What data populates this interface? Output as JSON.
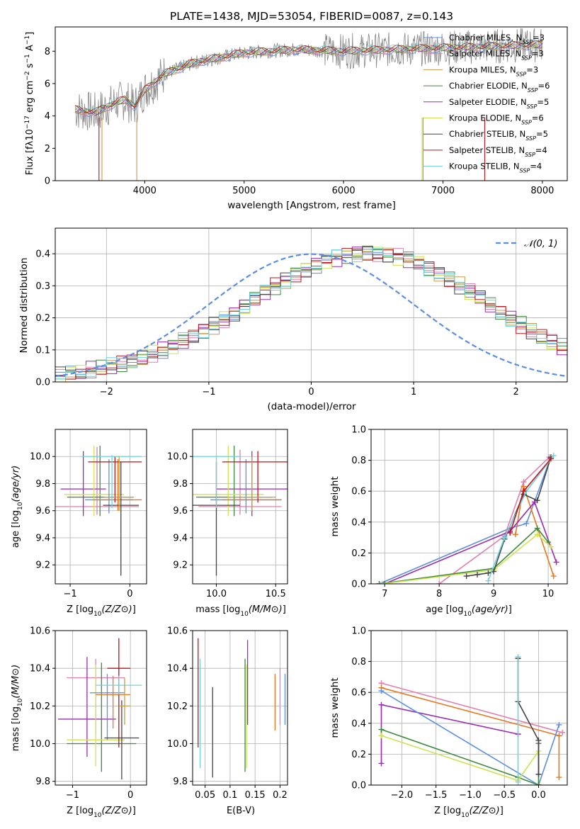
{
  "colors": {
    "blue": "#5b8ee6",
    "orange": "#e8781e",
    "tan": "#c89a4b",
    "green": "#3d8a3d",
    "purple": "#9b2ab4",
    "yellow": "#cfe34f",
    "dark": "#444444",
    "red": "#c0131a",
    "cyan": "#6fd3dd",
    "pink": "#e27eb0",
    "olive": "#8abf2a",
    "gray": "#888888"
  },
  "chart_data": [
    {
      "id": "spectrum",
      "type": "line",
      "title": "PLATE=1438, MJD=53054, FIBERID=0087, z=0.143",
      "xlabel": "wavelength [Angstrom, rest frame]",
      "ylabel_main": "Flux [fλ10",
      "ylabel_exp": "−17",
      "ylabel_rest": " erg cm",
      "ylabel_exp2": "−2",
      "ylabel_rest2": " s",
      "ylabel_exp3": "−1",
      "ylabel_rest3": " A",
      "ylabel_exp4": "−1",
      "ylabel_end": "]",
      "xlim": [
        3100,
        8250
      ],
      "ylim": [
        0,
        9.5
      ],
      "xticks": [
        4000,
        5000,
        6000,
        7000,
        8000
      ],
      "yticks": [
        0,
        2,
        4,
        6,
        8
      ],
      "grid": false,
      "legend_placement": "top-right",
      "data_trace": {
        "x": [
          3300,
          3400,
          3500,
          3600,
          3700,
          3800,
          3900,
          4000,
          4200,
          4500,
          5000,
          5500,
          6000,
          6500,
          7000,
          7500,
          8000
        ],
        "y": [
          4.4,
          4.3,
          4.2,
          4.5,
          4.8,
          5.0,
          4.6,
          5.6,
          6.6,
          7.3,
          7.9,
          8.1,
          8.0,
          8.1,
          8.2,
          8.3,
          8.4
        ]
      },
      "series": [
        {
          "name": "Chabrier MILES, N",
          "sub": "SSP",
          "suffix": "=3",
          "color": "blue"
        },
        {
          "name": "Salpeter MILES, N",
          "sub": "SSP",
          "suffix": "=3",
          "color": "pink"
        },
        {
          "name": "Kroupa MILES, N",
          "sub": "SSP",
          "suffix": "=3",
          "color": "tan"
        },
        {
          "name": "Chabrier ELODIE, N",
          "sub": "SSP",
          "suffix": "=6",
          "color": "green"
        },
        {
          "name": "Salpeter ELODIE, N",
          "sub": "SSP",
          "suffix": "=5",
          "color": "purple"
        },
        {
          "name": "Kroupa ELODIE, N",
          "sub": "SSP",
          "suffix": "=6",
          "color": "yellow"
        },
        {
          "name": "Chabrier STELIB, N",
          "sub": "SSP",
          "suffix": "=5",
          "color": "dark"
        },
        {
          "name": "Salpeter STELIB, N",
          "sub": "SSP",
          "suffix": "=4",
          "color": "red"
        },
        {
          "name": "Kroupa STELIB, N",
          "sub": "SSP",
          "suffix": "=4",
          "color": "cyan"
        }
      ],
      "model_lines": [
        3540,
        3570,
        3920,
        6790,
        6800,
        7420
      ]
    },
    {
      "id": "residuals",
      "type": "histogram",
      "xlabel": "(data-model)/error",
      "ylabel": "Normed distribution",
      "xlim": [
        -2.5,
        2.5
      ],
      "ylim": [
        0,
        0.48
      ],
      "xticks": [
        -2,
        -1,
        0,
        1,
        2
      ],
      "yticks": [
        0.0,
        0.1,
        0.2,
        0.3,
        0.4
      ],
      "grid": true,
      "legend": "𝒩(0, 1)",
      "legend_placement": "top-right",
      "bin_width": 0.1,
      "bin_start": -2.5,
      "base_values": [
        0.02,
        0.025,
        0.03,
        0.038,
        0.042,
        0.048,
        0.055,
        0.062,
        0.075,
        0.088,
        0.1,
        0.112,
        0.128,
        0.14,
        0.158,
        0.176,
        0.196,
        0.215,
        0.238,
        0.258,
        0.28,
        0.3,
        0.318,
        0.338,
        0.352,
        0.366,
        0.378,
        0.388,
        0.396,
        0.402,
        0.405,
        0.402,
        0.398,
        0.392,
        0.382,
        0.37,
        0.355,
        0.34,
        0.322,
        0.302,
        0.282,
        0.262,
        0.24,
        0.22,
        0.198,
        0.178,
        0.158,
        0.14,
        0.124,
        0.108
      ]
    },
    {
      "id": "z-age",
      "type": "errorbar",
      "xlabel": "Z [log10(Z/Z⊙)]",
      "ylabel": "age  [log10(age/yr)]",
      "xlim": [
        -1.25,
        0.28
      ],
      "ylim": [
        9.06,
        10.2
      ],
      "xticks": [
        -1,
        0
      ],
      "yticks": [
        9.2,
        9.4,
        9.6,
        9.8,
        10.0
      ],
      "grid": true
    },
    {
      "id": "mass-age",
      "type": "errorbar",
      "xlabel": "mass [log10(M/M⊙)]",
      "xlim": [
        9.8,
        10.6
      ],
      "ylim": [
        9.06,
        10.2
      ],
      "xticks": [
        10.0,
        10.5
      ],
      "yticks": [
        9.2,
        9.4,
        9.6,
        9.8,
        10.0
      ],
      "grid": true
    },
    {
      "id": "weight-age",
      "type": "line",
      "xlabel": "age  [log10(age/yr)]",
      "ylabel": "mass weight",
      "xlim": [
        6.75,
        10.35
      ],
      "ylim": [
        0.0,
        1.0
      ],
      "xticks": [
        7,
        8,
        9,
        10
      ],
      "yticks": [
        0.0,
        0.2,
        0.4,
        0.6,
        0.8,
        1.0
      ],
      "grid": true,
      "series": [
        {
          "color": "blue",
          "x": [
            6.9,
            9.3,
            9.6,
            10.05
          ],
          "y": [
            0.0,
            0.36,
            0.39,
            0.82
          ]
        },
        {
          "color": "pink",
          "x": [
            8.0,
            9.2,
            9.55,
            10.02
          ],
          "y": [
            0.0,
            0.31,
            0.66,
            0.82
          ]
        },
        {
          "color": "orange",
          "x": [
            9.4,
            9.55,
            10.1
          ],
          "y": [
            0.32,
            0.63,
            0.05
          ]
        },
        {
          "color": "purple",
          "x": [
            7.0,
            9.3,
            9.75,
            10.15
          ],
          "y": [
            0.0,
            0.34,
            0.53,
            0.14
          ]
        },
        {
          "color": "green",
          "x": [
            6.9,
            9.0,
            9.8,
            10.0
          ],
          "y": [
            0.0,
            0.1,
            0.36,
            0.27
          ]
        },
        {
          "color": "yellow",
          "x": [
            6.95,
            9.0,
            9.8,
            10.05
          ],
          "y": [
            0.0,
            0.09,
            0.32,
            0.24
          ]
        },
        {
          "color": "dark",
          "x": [
            8.5,
            8.7,
            8.9,
            9.0,
            9.2,
            9.55,
            9.8,
            10.05
          ],
          "y": [
            0.05,
            0.06,
            0.07,
            0.08,
            0.29,
            0.58,
            0.54,
            0.82
          ]
        },
        {
          "color": "cyan",
          "x": [
            8.9,
            9.2,
            9.6,
            10.1
          ],
          "y": [
            0.02,
            0.3,
            0.6,
            0.83
          ]
        },
        {
          "color": "red",
          "x": [
            9.3,
            9.55,
            10.05
          ],
          "y": [
            0.33,
            0.6,
            0.81
          ]
        }
      ]
    },
    {
      "id": "z-mass",
      "type": "errorbar",
      "xlabel": "Z [log10(Z/Z⊙)]",
      "ylabel": "mass [log10(M/M⊙)]",
      "xlim": [
        -1.3,
        0.28
      ],
      "ylim": [
        9.78,
        10.6
      ],
      "xticks": [
        -1,
        0
      ],
      "yticks": [
        9.8,
        10.0,
        10.2,
        10.4,
        10.6
      ],
      "grid": true
    },
    {
      "id": "ebv-mass",
      "type": "errorbar",
      "xlabel": "E(B-V)",
      "xlim": [
        0.025,
        0.215
      ],
      "ylim": [
        9.78,
        10.6
      ],
      "xticks": [
        0.05,
        0.1,
        0.15,
        0.2
      ],
      "yticks": [
        9.8,
        10.0,
        10.2,
        10.4,
        10.6
      ],
      "grid": true
    },
    {
      "id": "weight-z",
      "type": "line",
      "xlabel": "Z [log10(Z/Z⊙)]",
      "ylabel": "mass weight",
      "xlim": [
        -2.45,
        0.42
      ],
      "ylim": [
        0.0,
        1.0
      ],
      "xticks": [
        -2.0,
        -1.5,
        -1.0,
        -0.5,
        0.0
      ],
      "yticks": [
        0.0,
        0.2,
        0.4,
        0.6,
        0.8,
        1.0
      ],
      "grid": true,
      "series": [
        {
          "color": "pink",
          "x": [
            -2.3,
            0.35
          ],
          "y": [
            0.66,
            0.34
          ]
        },
        {
          "color": "orange",
          "x": [
            -2.3,
            0.3,
            0.3
          ],
          "y": [
            0.63,
            0.32,
            0.05
          ]
        },
        {
          "color": "purple",
          "x": [
            -2.3,
            -2.3,
            -0.3,
            -0.3
          ],
          "y": [
            0.14,
            0.52,
            0.33,
            0.33
          ]
        },
        {
          "color": "blue",
          "x": [
            -2.3,
            0.0,
            0.3
          ],
          "y": [
            0.61,
            0.0,
            0.39
          ]
        },
        {
          "color": "green",
          "x": [
            -2.3,
            -0.3,
            0.0,
            0.0
          ],
          "y": [
            0.36,
            0.05,
            0.0,
            0.27
          ]
        },
        {
          "color": "yellow",
          "x": [
            -2.3,
            -0.3,
            0.0
          ],
          "y": [
            0.32,
            0.03,
            0.22
          ]
        },
        {
          "color": "dark",
          "x": [
            -0.3,
            -0.3,
            0.0,
            0.0
          ],
          "y": [
            0.82,
            0.54,
            0.29,
            0.07
          ]
        },
        {
          "color": "cyan",
          "x": [
            -0.3,
            -0.3
          ],
          "y": [
            0.02,
            0.83
          ]
        }
      ]
    }
  ]
}
